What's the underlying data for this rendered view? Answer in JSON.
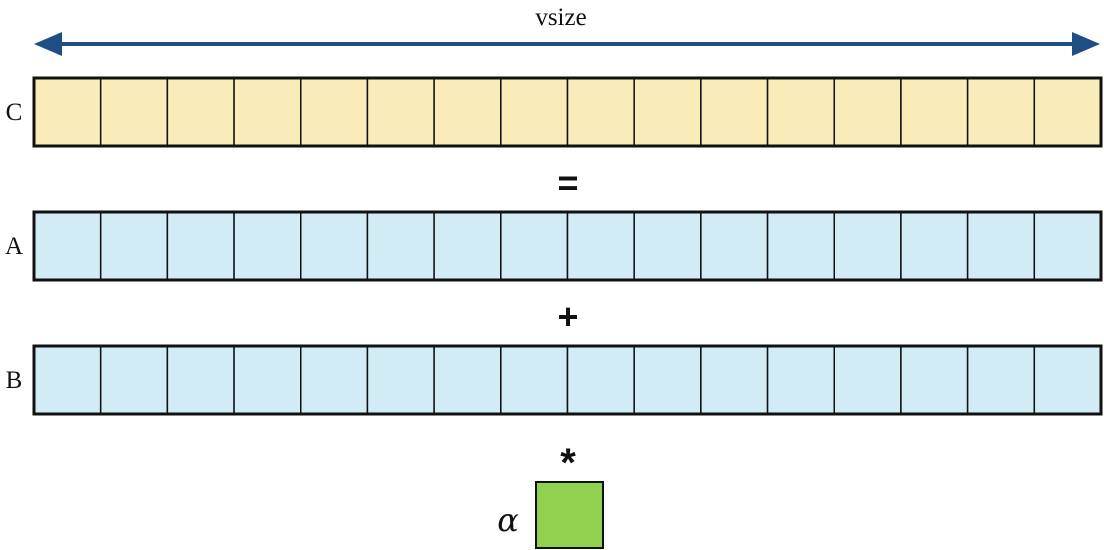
{
  "size_label": "vsize",
  "cells_per_vector": 16,
  "colors": {
    "result_fill": "#faecb8",
    "input_fill": "#d1ecf5",
    "scalar_fill": "#92d050",
    "arrow": "#1f4e85",
    "stroke": "#111111"
  },
  "vectors": [
    {
      "id": "C",
      "label": "C",
      "role": "result"
    },
    {
      "id": "A",
      "label": "A",
      "role": "input"
    },
    {
      "id": "B",
      "label": "B",
      "role": "input"
    }
  ],
  "operators": {
    "equals": "=",
    "plus": "+",
    "times": "*"
  },
  "scalar": {
    "label": "α"
  }
}
